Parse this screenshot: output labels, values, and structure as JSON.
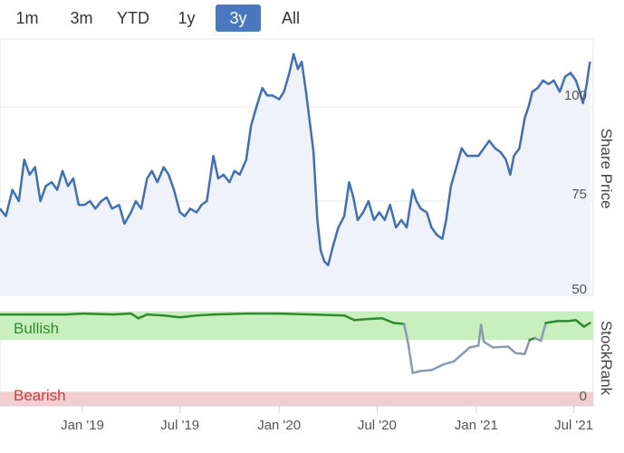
{
  "range_selector": {
    "buttons": [
      {
        "label": "1m",
        "active": false
      },
      {
        "label": "3m",
        "active": false
      },
      {
        "label": "YTD",
        "active": false
      },
      {
        "label": "1y",
        "active": false
      },
      {
        "label": "3y",
        "active": true
      },
      {
        "label": "All",
        "active": false
      }
    ]
  },
  "colors": {
    "price_line": "#3f6fb5",
    "price_area": "#f0f2f9",
    "bullish_band": "#c9efbe",
    "bearish_band": "#f2cfcf",
    "stockrank_bullish_line": "#2e8b2e",
    "stockrank_neutral_line": "#8a9ab3",
    "active_button": "#4a78be"
  },
  "chart_data": [
    {
      "type": "line",
      "title": "",
      "ylabel": "Share Price",
      "ylim": [
        50,
        118
      ],
      "yticks": [
        50,
        75,
        100
      ],
      "x_ticks": [
        "Jan '19",
        "Jul '19",
        "Jan '20",
        "Jul '20",
        "Jan '21",
        "Jul '21"
      ],
      "x_tick_dates": [
        "2019-01-01",
        "2019-07-01",
        "2020-01-01",
        "2020-07-01",
        "2021-01-01",
        "2021-07-01"
      ],
      "x_range": [
        "2018-08-01",
        "2021-08-01"
      ],
      "series": [
        {
          "name": "Share Price",
          "points": [
            [
              "2018-08-01",
              73
            ],
            [
              "2018-08-12",
              71
            ],
            [
              "2018-08-24",
              78
            ],
            [
              "2018-09-05",
              75
            ],
            [
              "2018-09-15",
              86
            ],
            [
              "2018-09-25",
              82
            ],
            [
              "2018-10-05",
              84
            ],
            [
              "2018-10-15",
              75
            ],
            [
              "2018-10-25",
              79
            ],
            [
              "2018-11-05",
              80
            ],
            [
              "2018-11-15",
              78
            ],
            [
              "2018-11-25",
              83
            ],
            [
              "2018-12-05",
              79
            ],
            [
              "2018-12-15",
              81
            ],
            [
              "2018-12-25",
              74
            ],
            [
              "2019-01-05",
              74
            ],
            [
              "2019-01-15",
              75
            ],
            [
              "2019-01-25",
              73
            ],
            [
              "2019-02-05",
              75
            ],
            [
              "2019-02-15",
              76
            ],
            [
              "2019-02-25",
              73
            ],
            [
              "2019-03-10",
              74
            ],
            [
              "2019-03-20",
              69
            ],
            [
              "2019-04-01",
              72
            ],
            [
              "2019-04-10",
              75
            ],
            [
              "2019-04-20",
              73
            ],
            [
              "2019-05-01",
              81
            ],
            [
              "2019-05-10",
              83
            ],
            [
              "2019-05-20",
              80
            ],
            [
              "2019-06-01",
              84
            ],
            [
              "2019-06-10",
              82
            ],
            [
              "2019-06-20",
              78
            ],
            [
              "2019-07-01",
              72
            ],
            [
              "2019-07-10",
              71
            ],
            [
              "2019-07-20",
              73
            ],
            [
              "2019-08-01",
              72
            ],
            [
              "2019-08-10",
              74
            ],
            [
              "2019-08-20",
              75
            ],
            [
              "2019-09-01",
              87
            ],
            [
              "2019-09-10",
              81
            ],
            [
              "2019-09-20",
              82
            ],
            [
              "2019-10-01",
              80
            ],
            [
              "2019-10-10",
              83
            ],
            [
              "2019-10-20",
              82
            ],
            [
              "2019-11-01",
              86
            ],
            [
              "2019-11-10",
              95
            ],
            [
              "2019-11-20",
              100
            ],
            [
              "2019-12-01",
              105
            ],
            [
              "2019-12-10",
              103
            ],
            [
              "2019-12-20",
              103
            ],
            [
              "2020-01-01",
              102
            ],
            [
              "2020-01-10",
              104
            ],
            [
              "2020-01-20",
              109
            ],
            [
              "2020-01-28",
              114
            ],
            [
              "2020-02-05",
              110
            ],
            [
              "2020-02-12",
              112
            ],
            [
              "2020-02-20",
              104
            ],
            [
              "2020-02-26",
              97
            ],
            [
              "2020-03-05",
              88
            ],
            [
              "2020-03-12",
              70
            ],
            [
              "2020-03-18",
              62
            ],
            [
              "2020-03-25",
              59
            ],
            [
              "2020-04-01",
              58
            ],
            [
              "2020-04-10",
              63
            ],
            [
              "2020-04-20",
              68
            ],
            [
              "2020-05-01",
              71
            ],
            [
              "2020-05-10",
              80
            ],
            [
              "2020-05-18",
              76
            ],
            [
              "2020-05-26",
              70
            ],
            [
              "2020-06-05",
              72
            ],
            [
              "2020-06-15",
              75
            ],
            [
              "2020-06-25",
              70
            ],
            [
              "2020-07-05",
              72
            ],
            [
              "2020-07-15",
              70
            ],
            [
              "2020-07-25",
              74
            ],
            [
              "2020-08-05",
              68
            ],
            [
              "2020-08-15",
              70
            ],
            [
              "2020-08-25",
              68
            ],
            [
              "2020-09-05",
              78
            ],
            [
              "2020-09-12",
              75
            ],
            [
              "2020-09-20",
              73
            ],
            [
              "2020-10-01",
              72
            ],
            [
              "2020-10-10",
              68
            ],
            [
              "2020-10-20",
              66
            ],
            [
              "2020-10-30",
              65
            ],
            [
              "2020-11-06",
              70
            ],
            [
              "2020-11-15",
              79
            ],
            [
              "2020-11-25",
              84
            ],
            [
              "2020-12-05",
              89
            ],
            [
              "2020-12-15",
              87
            ],
            [
              "2020-12-25",
              87
            ],
            [
              "2021-01-05",
              87
            ],
            [
              "2021-01-15",
              89
            ],
            [
              "2021-01-25",
              91
            ],
            [
              "2021-02-05",
              89
            ],
            [
              "2021-02-15",
              88
            ],
            [
              "2021-02-25",
              86
            ],
            [
              "2021-03-05",
              82
            ],
            [
              "2021-03-12",
              87
            ],
            [
              "2021-03-22",
              89
            ],
            [
              "2021-04-01",
              97
            ],
            [
              "2021-04-08",
              100
            ],
            [
              "2021-04-15",
              104
            ],
            [
              "2021-04-25",
              105
            ],
            [
              "2021-05-05",
              107
            ],
            [
              "2021-05-15",
              106
            ],
            [
              "2021-05-25",
              107
            ],
            [
              "2021-06-05",
              104
            ],
            [
              "2021-06-15",
              108
            ],
            [
              "2021-06-25",
              109
            ],
            [
              "2021-07-05",
              107
            ],
            [
              "2021-07-12",
              104
            ],
            [
              "2021-07-18",
              101
            ],
            [
              "2021-07-25",
              106
            ],
            [
              "2021-07-31",
              112
            ]
          ]
        }
      ]
    },
    {
      "type": "line",
      "title": "",
      "ylabel": "StockRank",
      "ylim": [
        0,
        100
      ],
      "yticks": [
        0
      ],
      "bands": [
        {
          "label": "Bullish",
          "from": 70,
          "to": 100
        },
        {
          "label": "Bearish",
          "from": 0,
          "to": 15
        }
      ],
      "series": [
        {
          "name": "StockRank",
          "points": [
            [
              "2018-08-01",
              97
            ],
            [
              "2018-10-01",
              97
            ],
            [
              "2018-12-01",
              97
            ],
            [
              "2019-01-01",
              98
            ],
            [
              "2019-03-01",
              97
            ],
            [
              "2019-04-01",
              98
            ],
            [
              "2019-04-15",
              93
            ],
            [
              "2019-05-01",
              97
            ],
            [
              "2019-06-01",
              96
            ],
            [
              "2019-07-01",
              94
            ],
            [
              "2019-08-01",
              96
            ],
            [
              "2019-09-01",
              97
            ],
            [
              "2019-11-01",
              98
            ],
            [
              "2020-01-01",
              98
            ],
            [
              "2020-03-01",
              97
            ],
            [
              "2020-05-01",
              96
            ],
            [
              "2020-05-20",
              91
            ],
            [
              "2020-06-10",
              92
            ],
            [
              "2020-07-10",
              93
            ],
            [
              "2020-08-01",
              88
            ],
            [
              "2020-08-20",
              87
            ],
            [
              "2020-08-28",
              65
            ],
            [
              "2020-09-05",
              35
            ],
            [
              "2020-09-20",
              37
            ],
            [
              "2020-10-10",
              38
            ],
            [
              "2020-11-01",
              44
            ],
            [
              "2020-11-20",
              47
            ],
            [
              "2020-12-10",
              57
            ],
            [
              "2020-12-20",
              62
            ],
            [
              "2021-01-05",
              64
            ],
            [
              "2021-01-10",
              86
            ],
            [
              "2021-01-15",
              68
            ],
            [
              "2021-02-01",
              62
            ],
            [
              "2021-03-01",
              63
            ],
            [
              "2021-03-15",
              56
            ],
            [
              "2021-04-01",
              55
            ],
            [
              "2021-04-10",
              70
            ],
            [
              "2021-04-20",
              72
            ],
            [
              "2021-05-01",
              69
            ],
            [
              "2021-05-10",
              88
            ],
            [
              "2021-06-01",
              90
            ],
            [
              "2021-06-20",
              90
            ],
            [
              "2021-07-05",
              91
            ],
            [
              "2021-07-20",
              84
            ],
            [
              "2021-07-31",
              88
            ]
          ]
        }
      ]
    }
  ]
}
